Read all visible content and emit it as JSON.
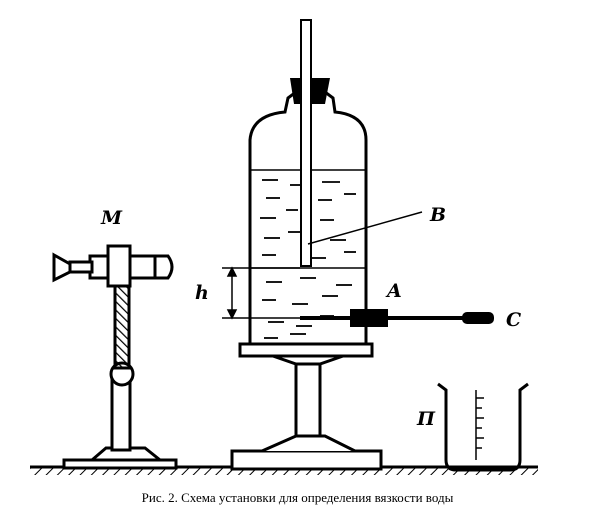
{
  "labels": {
    "M": "M",
    "B": "B",
    "h": "h",
    "A": "A",
    "C": "C",
    "P": "П"
  },
  "caption": "Рис. 2. Схема установки для определения вязкости воды"
}
